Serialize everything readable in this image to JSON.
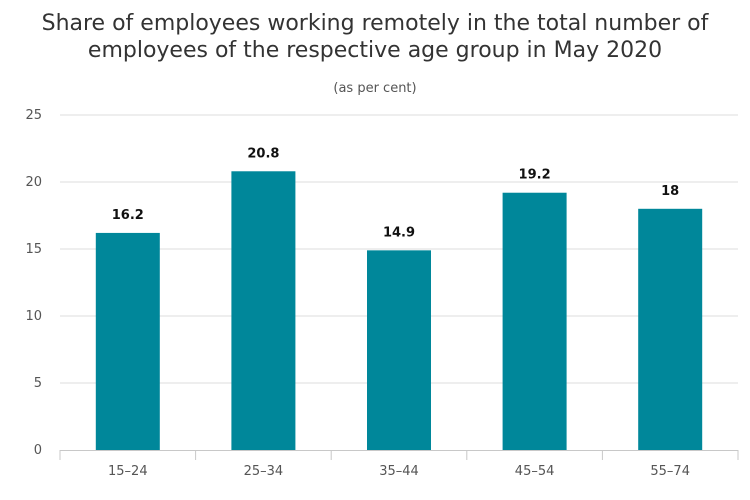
{
  "chart_data": {
    "type": "bar",
    "title_lines": [
      "Share of employees working remotely in the total number of",
      "employees of the respective age group in May 2020"
    ],
    "subtitle": "(as per cent)",
    "xlabel": "",
    "ylabel": "",
    "categories": [
      "15–24",
      "25–34",
      "35–44",
      "45–54",
      "55–74"
    ],
    "values": [
      16.2,
      20.8,
      14.9,
      19.2,
      18
    ],
    "data_labels": [
      "16.2",
      "20.8",
      "14.9",
      "19.2",
      "18"
    ],
    "ylim": [
      0,
      25
    ],
    "yticks": [
      0,
      5,
      10,
      15,
      20,
      25
    ],
    "ytick_labels": [
      "0",
      "5",
      "10",
      "15",
      "20",
      "25"
    ],
    "grid": true,
    "legend": "none",
    "bar_color": "#00879A"
  }
}
